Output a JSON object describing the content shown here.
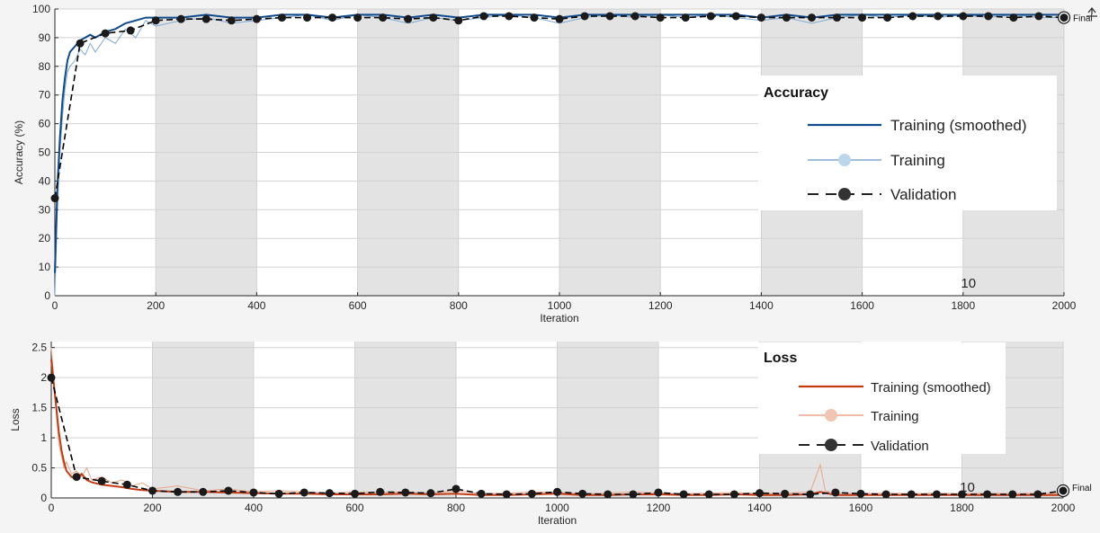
{
  "chart_data": [
    {
      "type": "line",
      "title": "",
      "xlabel": "Iteration",
      "ylabel": "Accuracy (%)",
      "xlim": [
        0,
        2000
      ],
      "ylim": [
        0,
        100
      ],
      "xticks": [
        0,
        200,
        400,
        600,
        800,
        1000,
        1200,
        1400,
        1600,
        1800,
        2000
      ],
      "yticks": [
        0,
        10,
        20,
        30,
        40,
        50,
        60,
        70,
        80,
        90,
        100
      ],
      "grid": true,
      "epoch_bands": [
        [
          200,
          400
        ],
        [
          600,
          800
        ],
        [
          1000,
          1200
        ],
        [
          1400,
          1600
        ],
        [
          1800,
          2000
        ]
      ],
      "epoch_label": "10",
      "epoch_label_x": 1810,
      "final_label": "Final",
      "legend": {
        "title": "Accuracy",
        "placement": "right",
        "entries": [
          "Training (smoothed)",
          "Training",
          "Validation"
        ]
      },
      "series": [
        {
          "name": "Training (smoothed)",
          "color": "#0e4a8c",
          "x": [
            0,
            5,
            10,
            15,
            20,
            25,
            30,
            40,
            50,
            60,
            70,
            80,
            100,
            120,
            140,
            160,
            180,
            200,
            250,
            300,
            350,
            400,
            450,
            500,
            550,
            600,
            650,
            700,
            750,
            800,
            850,
            900,
            950,
            1000,
            1050,
            1100,
            1150,
            1200,
            1250,
            1300,
            1350,
            1400,
            1450,
            1500,
            1550,
            1600,
            1650,
            1700,
            1750,
            1800,
            1850,
            1900,
            1950,
            2000
          ],
          "y": [
            8,
            38,
            55,
            68,
            76,
            82,
            85,
            87,
            89,
            90,
            91,
            90,
            92,
            93,
            95,
            96,
            97,
            97,
            97,
            98,
            97,
            97,
            98,
            98,
            97,
            98,
            98,
            97,
            98,
            97,
            98,
            98,
            98,
            97,
            98,
            98,
            98,
            98,
            98,
            98,
            98,
            97,
            98,
            97,
            98,
            98,
            98,
            98,
            98,
            98,
            98,
            98,
            98,
            98
          ]
        },
        {
          "name": "Training",
          "color": "#7fa9cf",
          "x": [
            0,
            5,
            10,
            15,
            20,
            25,
            30,
            40,
            50,
            60,
            70,
            80,
            100,
            120,
            140,
            160,
            180,
            200,
            250,
            300,
            350,
            400,
            450,
            500,
            550,
            600,
            650,
            700,
            750,
            800,
            850,
            900,
            950,
            1000,
            1050,
            1100,
            1150,
            1200,
            1250,
            1300,
            1350,
            1400,
            1450,
            1500,
            1550,
            1600,
            1650,
            1700,
            1750,
            1800,
            1850,
            1900,
            1950,
            2000
          ],
          "y": [
            0,
            30,
            50,
            62,
            72,
            78,
            80,
            82,
            86,
            84,
            88,
            85,
            90,
            88,
            93,
            90,
            96,
            94,
            96,
            97,
            95,
            96,
            97,
            98,
            96,
            98,
            97,
            95,
            97,
            96,
            97,
            98,
            97,
            95,
            97,
            98,
            97,
            98,
            97,
            98,
            97,
            96,
            97,
            95,
            97,
            98,
            97,
            98,
            97,
            98,
            97,
            98,
            97,
            97
          ]
        },
        {
          "name": "Validation",
          "color": "#000000",
          "x": [
            0,
            50,
            100,
            150,
            200,
            250,
            300,
            350,
            400,
            450,
            500,
            550,
            600,
            650,
            700,
            750,
            800,
            850,
            900,
            950,
            1000,
            1050,
            1100,
            1150,
            1200,
            1250,
            1300,
            1350,
            1400,
            1450,
            1500,
            1550,
            1600,
            1650,
            1700,
            1750,
            1800,
            1850,
            1900,
            1950,
            2000
          ],
          "y": [
            34,
            88,
            91.5,
            92.5,
            96,
            96.5,
            96.5,
            96,
            96.5,
            97,
            97,
            97,
            97,
            97,
            96.5,
            97,
            96,
            97.5,
            97.5,
            97,
            96.5,
            97.5,
            97.5,
            97.5,
            97,
            97,
            97.5,
            97.5,
            97,
            97,
            97,
            97,
            97,
            97,
            97.5,
            97.5,
            97.5,
            97.5,
            97,
            97.5,
            97
          ]
        }
      ]
    },
    {
      "type": "line",
      "title": "",
      "xlabel": "Iteration",
      "ylabel": "Loss",
      "xlim": [
        0,
        2000
      ],
      "ylim": [
        0,
        2.6
      ],
      "xticks": [
        0,
        200,
        400,
        600,
        800,
        1000,
        1200,
        1400,
        1600,
        1800,
        2000
      ],
      "yticks": [
        0,
        0.5,
        1,
        1.5,
        2,
        2.5
      ],
      "grid": true,
      "epoch_bands": [
        [
          200,
          400
        ],
        [
          600,
          800
        ],
        [
          1000,
          1200
        ],
        [
          1400,
          1600
        ],
        [
          1800,
          2000
        ]
      ],
      "epoch_label": "10",
      "epoch_label_x": 1810,
      "final_label": "Final",
      "legend": {
        "title": "Loss",
        "placement": "right",
        "entries": [
          "Training (smoothed)",
          "Training",
          "Validation"
        ]
      },
      "series": [
        {
          "name": "Training (smoothed)",
          "color": "#c23b12",
          "x": [
            0,
            5,
            10,
            15,
            20,
            25,
            30,
            40,
            50,
            60,
            70,
            80,
            100,
            120,
            140,
            160,
            180,
            200,
            250,
            300,
            350,
            400,
            450,
            500,
            550,
            600,
            650,
            700,
            750,
            800,
            850,
            900,
            950,
            1000,
            1050,
            1100,
            1150,
            1200,
            1250,
            1300,
            1350,
            1400,
            1450,
            1500,
            1520,
            1550,
            1600,
            1650,
            1700,
            1750,
            1800,
            1850,
            1900,
            1950,
            2000
          ],
          "y": [
            2.3,
            1.9,
            1.5,
            1.1,
            0.8,
            0.6,
            0.45,
            0.35,
            0.32,
            0.4,
            0.3,
            0.26,
            0.22,
            0.2,
            0.18,
            0.15,
            0.13,
            0.12,
            0.1,
            0.1,
            0.09,
            0.08,
            0.07,
            0.07,
            0.06,
            0.06,
            0.06,
            0.07,
            0.06,
            0.07,
            0.05,
            0.05,
            0.06,
            0.07,
            0.05,
            0.05,
            0.06,
            0.06,
            0.05,
            0.05,
            0.06,
            0.05,
            0.05,
            0.06,
            0.1,
            0.05,
            0.05,
            0.05,
            0.05,
            0.05,
            0.05,
            0.05,
            0.05,
            0.05,
            0.05
          ]
        },
        {
          "name": "Training",
          "color": "#e8a58a",
          "x": [
            0,
            5,
            10,
            15,
            20,
            25,
            30,
            40,
            50,
            60,
            70,
            80,
            100,
            120,
            140,
            160,
            180,
            200,
            250,
            300,
            350,
            400,
            450,
            500,
            550,
            600,
            650,
            700,
            750,
            800,
            850,
            900,
            950,
            1000,
            1050,
            1100,
            1150,
            1200,
            1250,
            1300,
            1350,
            1400,
            1450,
            1500,
            1520,
            1530,
            1550,
            1600,
            1650,
            1700,
            1750,
            1800,
            1850,
            1900,
            1950,
            2000
          ],
          "y": [
            2.5,
            2.0,
            1.4,
            0.9,
            0.7,
            0.5,
            0.6,
            0.4,
            0.45,
            0.35,
            0.5,
            0.3,
            0.35,
            0.25,
            0.3,
            0.2,
            0.25,
            0.15,
            0.2,
            0.12,
            0.15,
            0.1,
            0.12,
            0.1,
            0.08,
            0.1,
            0.09,
            0.1,
            0.08,
            0.12,
            0.07,
            0.08,
            0.1,
            0.09,
            0.07,
            0.08,
            0.1,
            0.08,
            0.07,
            0.08,
            0.09,
            0.07,
            0.08,
            0.1,
            0.55,
            0.12,
            0.08,
            0.07,
            0.08,
            0.07,
            0.08,
            0.07,
            0.08,
            0.07,
            0.08,
            0.07
          ]
        },
        {
          "name": "Validation",
          "color": "#000000",
          "x": [
            0,
            50,
            100,
            150,
            200,
            250,
            300,
            350,
            400,
            450,
            500,
            550,
            600,
            650,
            700,
            750,
            800,
            850,
            900,
            950,
            1000,
            1050,
            1100,
            1150,
            1200,
            1250,
            1300,
            1350,
            1400,
            1450,
            1500,
            1550,
            1600,
            1650,
            1700,
            1750,
            1800,
            1850,
            1900,
            1950,
            2000
          ],
          "y": [
            2.0,
            0.35,
            0.28,
            0.22,
            0.12,
            0.1,
            0.1,
            0.12,
            0.09,
            0.07,
            0.09,
            0.08,
            0.07,
            0.1,
            0.09,
            0.08,
            0.15,
            0.07,
            0.06,
            0.07,
            0.1,
            0.07,
            0.06,
            0.06,
            0.09,
            0.06,
            0.06,
            0.06,
            0.08,
            0.07,
            0.06,
            0.09,
            0.07,
            0.06,
            0.06,
            0.06,
            0.06,
            0.06,
            0.06,
            0.06,
            0.12
          ]
        }
      ]
    }
  ]
}
